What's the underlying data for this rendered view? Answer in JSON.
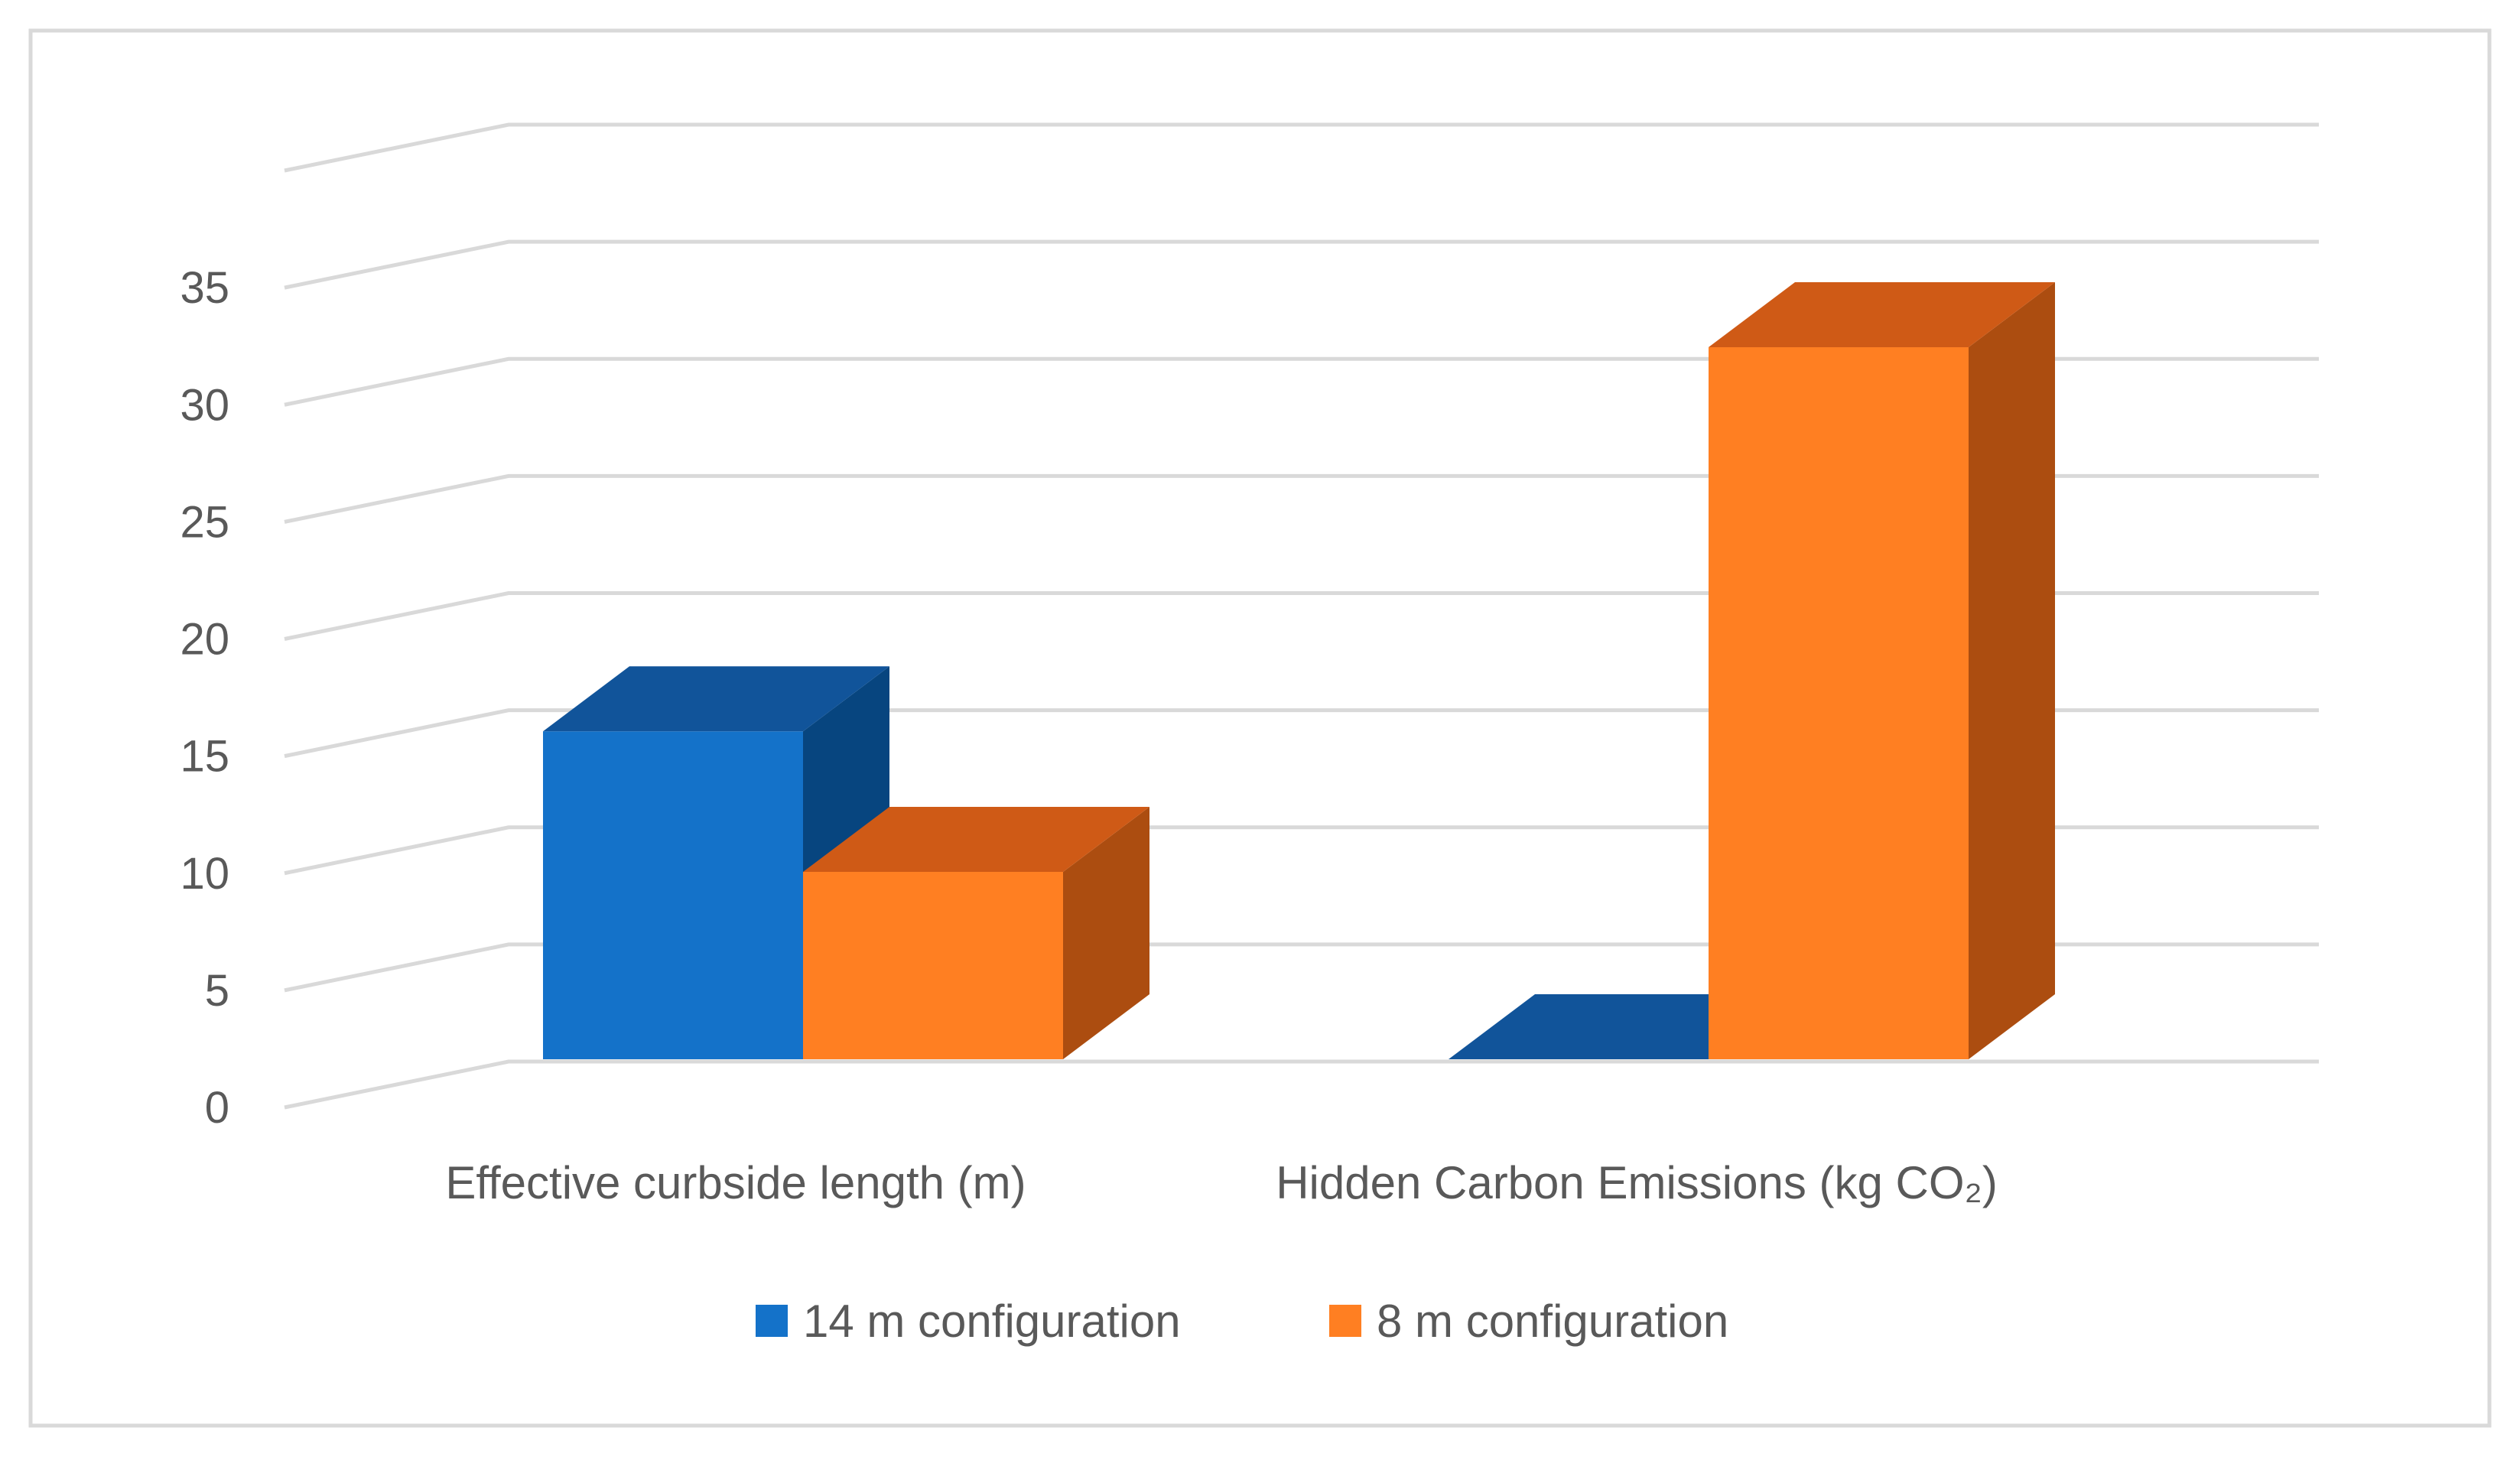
{
  "chart_data": {
    "type": "bar",
    "categories": [
      "Effective curbside length (m)",
      "Hidden Carbon Emissions (kg CO₂)"
    ],
    "series": [
      {
        "name": "14 m configuration",
        "values": [
          14,
          0
        ],
        "color": "#1472C9",
        "top_color": "#11549A",
        "side_color": "#07457F"
      },
      {
        "name": "8 m configuration",
        "values": [
          8,
          30.4
        ],
        "color": "#FF7F22",
        "top_color": "#CF5A16",
        "side_color": "#AC4D10"
      }
    ],
    "y_ticks": [
      "0",
      "5",
      "10",
      "15",
      "20",
      "25",
      "30",
      "35"
    ],
    "ylim": [
      0,
      40
    ],
    "grid": true,
    "legend_position": "bottom",
    "title": "",
    "xlabel": "",
    "ylabel": ""
  }
}
